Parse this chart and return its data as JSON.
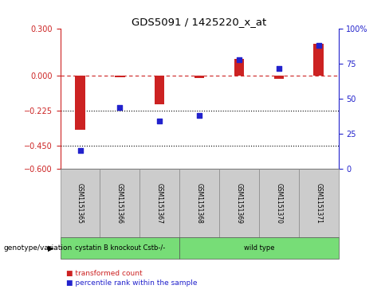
{
  "title": "GDS5091 / 1425220_x_at",
  "samples": [
    "GSM1151365",
    "GSM1151366",
    "GSM1151367",
    "GSM1151368",
    "GSM1151369",
    "GSM1151370",
    "GSM1151371"
  ],
  "red_values": [
    -0.35,
    -0.01,
    -0.185,
    -0.015,
    0.105,
    -0.02,
    0.205
  ],
  "blue_values": [
    13,
    44,
    34,
    38,
    78,
    72,
    88
  ],
  "ylim_left": [
    -0.6,
    0.3
  ],
  "ylim_right": [
    0,
    100
  ],
  "yticks_left": [
    0.3,
    0,
    -0.225,
    -0.45,
    -0.6
  ],
  "yticks_right": [
    100,
    75,
    50,
    25,
    0
  ],
  "ytick_labels_right": [
    "100%",
    "75",
    "50",
    "25",
    "0"
  ],
  "hline_y": 0,
  "dotted_lines": [
    -0.225,
    -0.45
  ],
  "bar_color": "#cc2222",
  "dot_color": "#2222cc",
  "bar_width": 0.25,
  "dot_size": 20,
  "group_bg_color": "#cccccc",
  "genotype_label": "genotype/variation",
  "legend_red": "transformed count",
  "legend_blue": "percentile rank within the sample",
  "groups": [
    {
      "label": "cystatin B knockout Cstb-/-",
      "start": 0,
      "end": 3
    },
    {
      "label": "wild type",
      "start": 3,
      "end": 7
    }
  ]
}
